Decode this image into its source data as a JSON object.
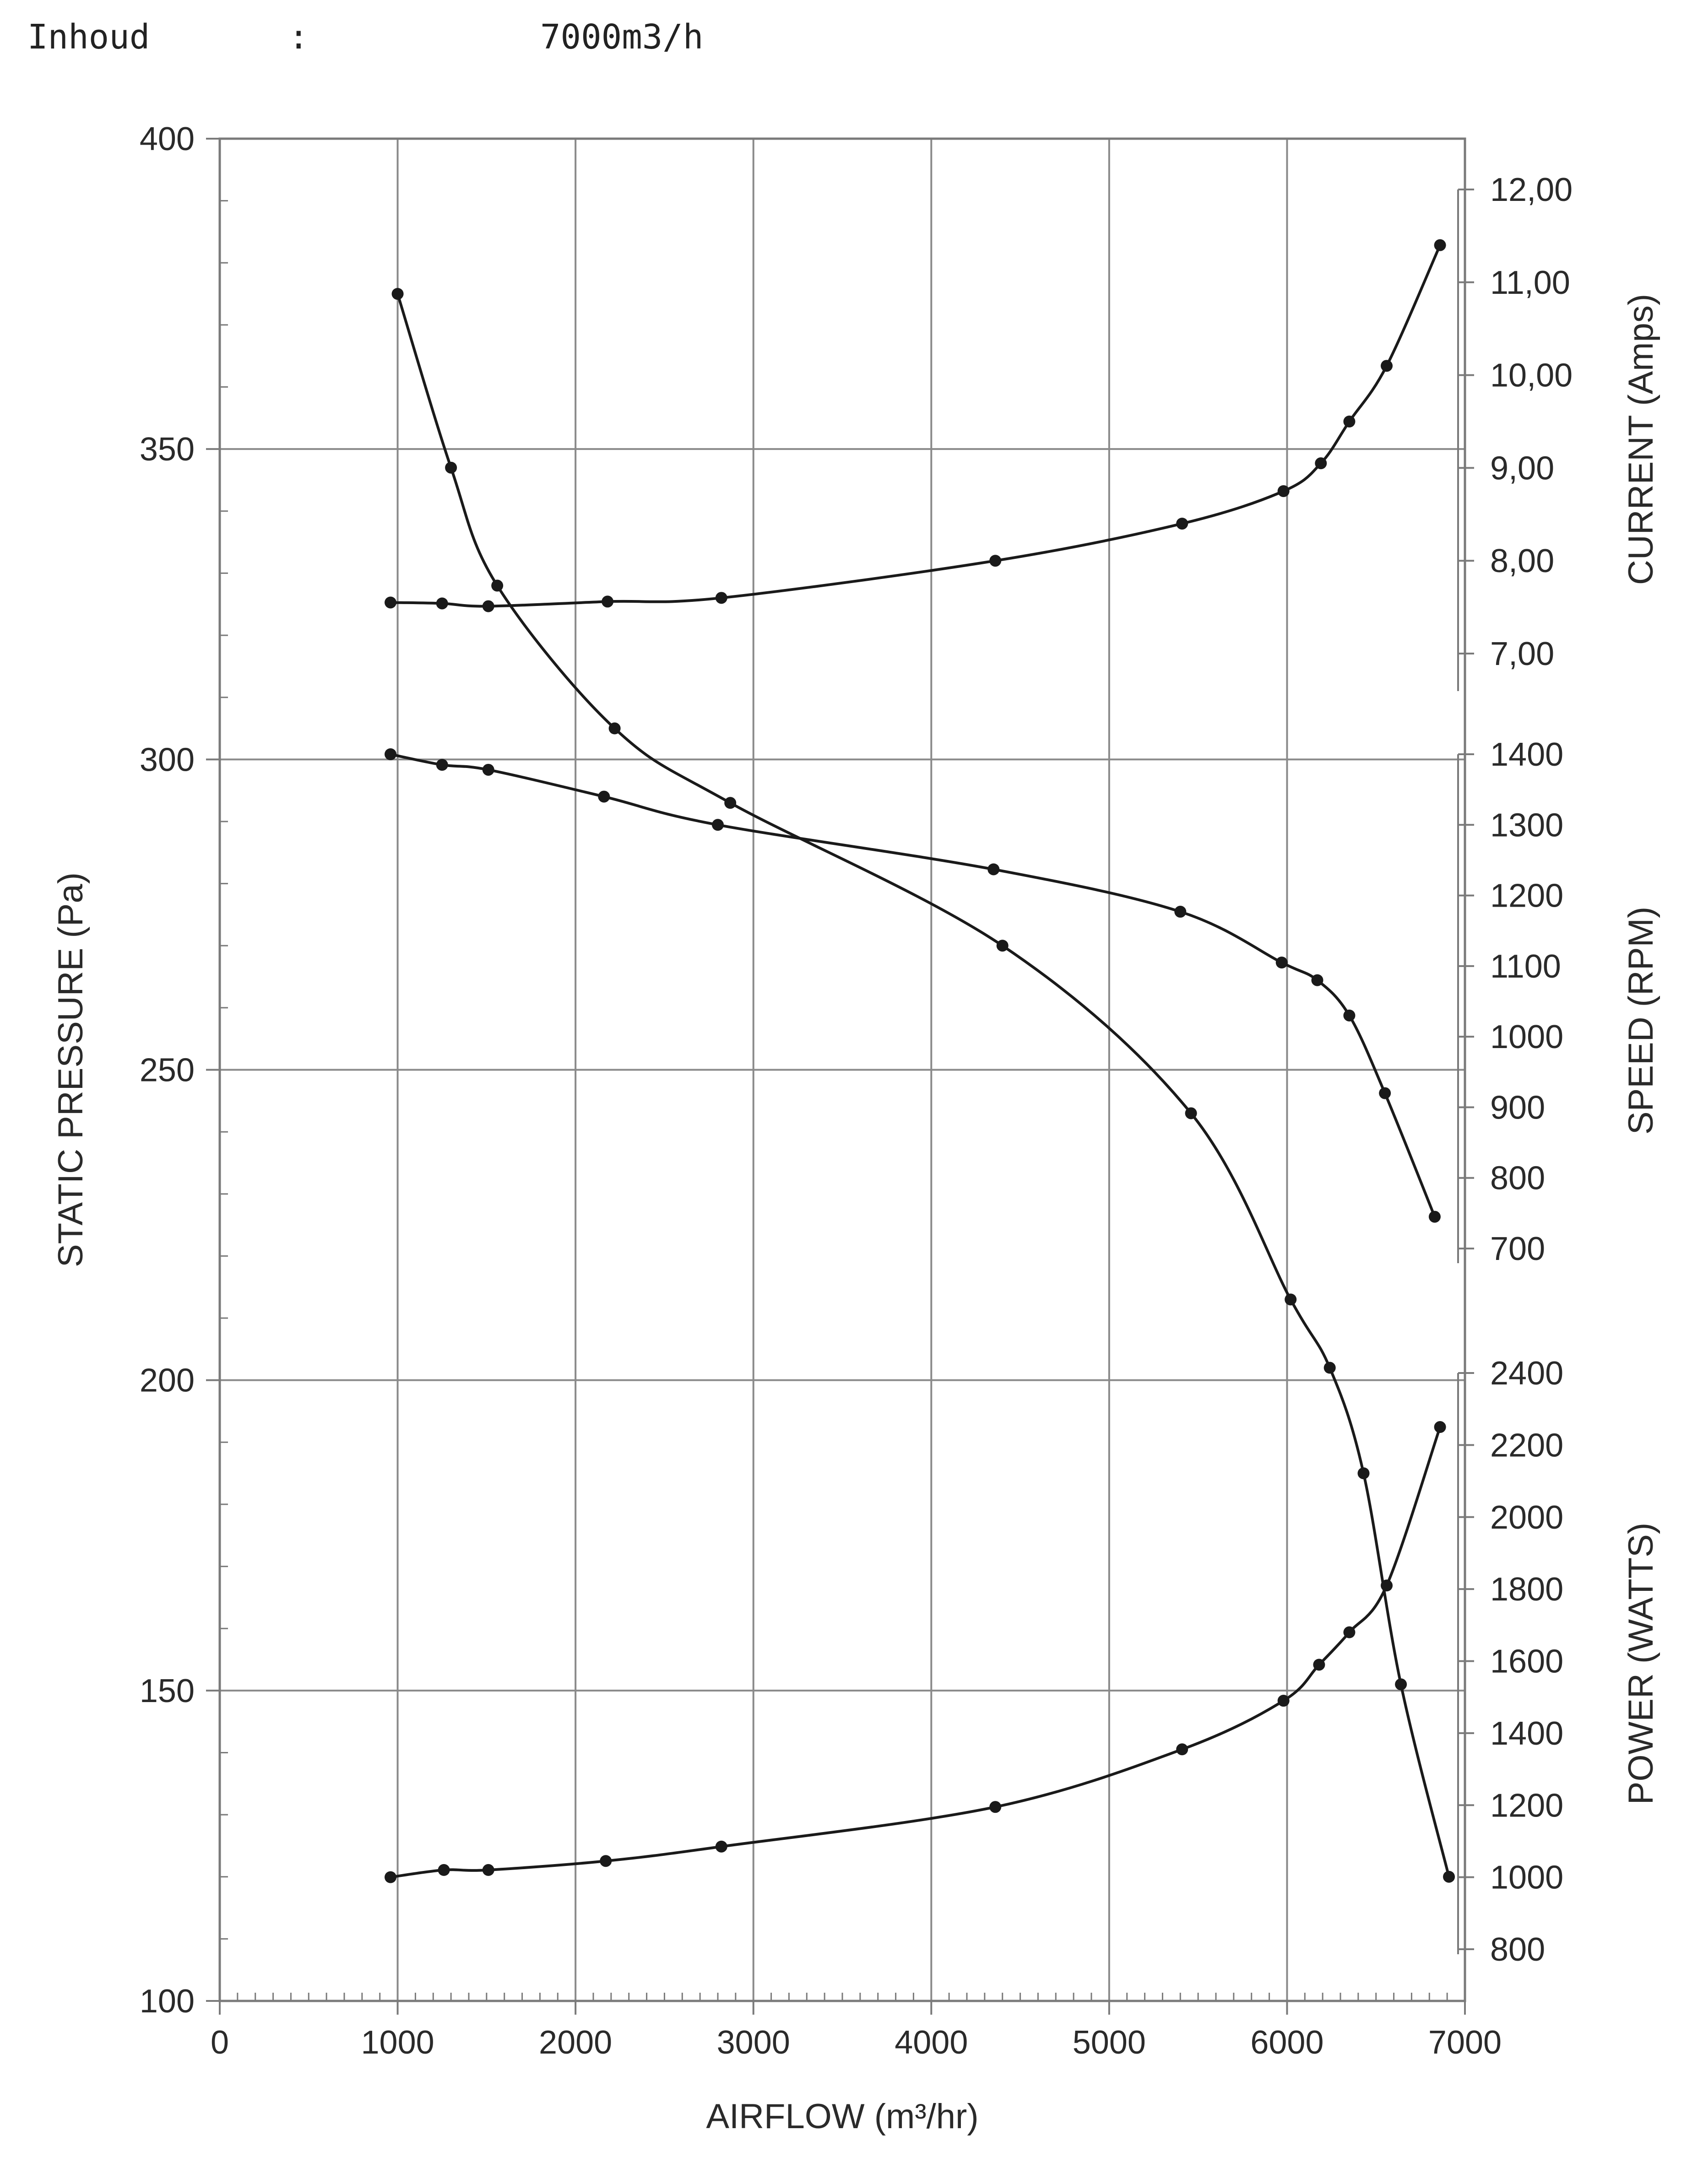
{
  "header": {
    "label": "Inhoud",
    "separator": ":",
    "value": "7000m3/h"
  },
  "chart_data": {
    "type": "line",
    "x_axis": {
      "label": "AIRFLOW (m³/hr)",
      "range": [
        0,
        7000
      ],
      "ticks": [
        0,
        1000,
        2000,
        3000,
        4000,
        5000,
        6000,
        7000
      ],
      "tick_labels": [
        "0",
        "1000",
        "2000",
        "3000",
        "4000",
        "5000",
        "6000",
        "7000"
      ]
    },
    "y_axis_left": {
      "label": "STATIC PRESSURE (Pa)",
      "range": [
        100,
        400
      ],
      "ticks": [
        100,
        150,
        200,
        250,
        300,
        350,
        400
      ],
      "tick_labels": [
        "100",
        "150",
        "200",
        "250",
        "300",
        "350",
        "400"
      ]
    },
    "y_axes_right": [
      {
        "label": "CURRENT (Amps)",
        "ticks": [
          7,
          8,
          9,
          10,
          11,
          12
        ],
        "tick_labels": [
          "7,00",
          "8,00",
          "9,00",
          "10,00",
          "11,00",
          "12,00"
        ]
      },
      {
        "label": "SPEED (RPM)",
        "ticks": [
          700,
          800,
          900,
          1000,
          1100,
          1200,
          1300,
          1400
        ],
        "tick_labels": [
          "700",
          "800",
          "900",
          "1000",
          "1100",
          "1200",
          "1300",
          "1400"
        ]
      },
      {
        "label": "POWER (WATTS)",
        "ticks": [
          800,
          1000,
          1200,
          1400,
          1600,
          1800,
          2000,
          2200,
          2400
        ],
        "tick_labels": [
          "800",
          "1000",
          "1200",
          "1400",
          "1600",
          "1800",
          "2000",
          "2200",
          "2400"
        ]
      }
    ],
    "grid": true,
    "series": [
      {
        "curve": "static pressure",
        "axis": "STATIC PRESSURE (Pa)",
        "x": [
          1000,
          1300,
          1560,
          2220,
          2870,
          4400,
          5460,
          6020,
          6240,
          6430,
          6640,
          6910
        ],
        "y": [
          375,
          347,
          328,
          305,
          293,
          270,
          243,
          213,
          202,
          185,
          151,
          120
        ]
      },
      {
        "curve": "current",
        "axis": "CURRENT (Amps)",
        "x": [
          960,
          1250,
          1510,
          2180,
          2820,
          4360,
          5410,
          5980,
          6190,
          6350,
          6560,
          6860
        ],
        "y": [
          7.55,
          7.54,
          7.51,
          7.56,
          7.6,
          8.0,
          8.4,
          8.75,
          9.05,
          9.5,
          10.1,
          11.4
        ]
      },
      {
        "curve": "speed",
        "axis": "SPEED (RPM)",
        "x": [
          960,
          1250,
          1510,
          2160,
          2800,
          4350,
          5400,
          5970,
          6170,
          6350,
          6550,
          6830
        ],
        "y": [
          1400,
          1385,
          1378,
          1340,
          1300,
          1237,
          1177,
          1105,
          1080,
          1030,
          920,
          745
        ]
      },
      {
        "curve": "power",
        "axis": "POWER (WATTS)",
        "x": [
          960,
          1260,
          1510,
          2170,
          2820,
          4360,
          5410,
          5980,
          6180,
          6350,
          6560,
          6860
        ],
        "y": [
          1000,
          1020,
          1020,
          1045,
          1085,
          1195,
          1355,
          1490,
          1590,
          1680,
          1810,
          2250
        ]
      }
    ]
  }
}
